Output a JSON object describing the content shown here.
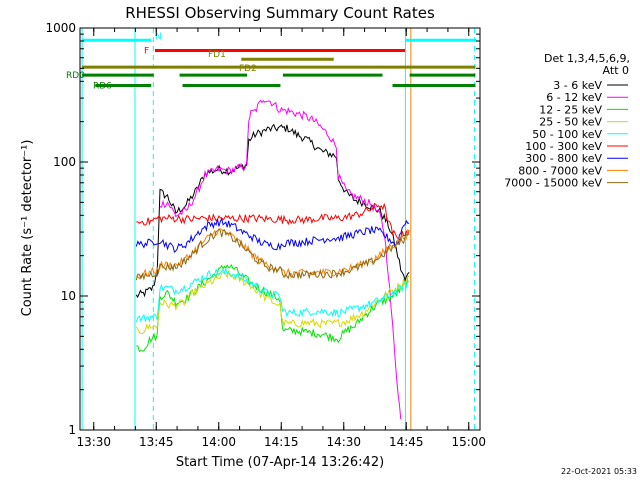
{
  "chart_data": {
    "type": "line",
    "title": "RHESSI Observing Summary Count Rates",
    "xlabel": "Start Time (07-Apr-14 13:26:42)",
    "ylabel": "Count Rate (s⁻¹ detector⁻¹)",
    "footer": "22-Oct-2021 05:33",
    "x_unit": "minutes after 13:26:42",
    "xlim": [
      0,
      96
    ],
    "ylim": [
      1,
      1000
    ],
    "y_scale": "log",
    "grid": false,
    "x_ticks": [
      {
        "label": "13:30",
        "value": 3.3
      },
      {
        "label": "13:45",
        "value": 18.3
      },
      {
        "label": "14:00",
        "value": 33.3
      },
      {
        "label": "14:15",
        "value": 48.3
      },
      {
        "label": "14:30",
        "value": 63.3
      },
      {
        "label": "14:45",
        "value": 78.3
      },
      {
        "label": "15:00",
        "value": 93.3
      }
    ],
    "y_ticks": [
      {
        "label": "1",
        "value": 1
      },
      {
        "label": "10",
        "value": 10
      },
      {
        "label": "100",
        "value": 100
      },
      {
        "label": "1000",
        "value": 1000
      }
    ],
    "legend": {
      "position": "right",
      "header": [
        "Det 1,3,4,5,6,9,",
        "Att 0"
      ],
      "entries": [
        {
          "label": "3 - 6 keV",
          "color": "#000000"
        },
        {
          "label": "6 - 12 keV",
          "color": "#ff00ff"
        },
        {
          "label": "12 - 25 keV",
          "color": "#00e600"
        },
        {
          "label": "25 - 50 keV",
          "color": "#d8d800"
        },
        {
          "label": "50 - 100 keV",
          "color": "#00ffff"
        },
        {
          "label": "100 - 300 keV",
          "color": "#ff0000"
        },
        {
          "label": "300 - 800 keV",
          "color": "#0000ff"
        },
        {
          "label": "800 - 7000 keV",
          "color": "#ff8000"
        },
        {
          "label": "7000 - 15000 keV",
          "color": "#8b6914"
        }
      ]
    },
    "series": [
      {
        "name": "3 - 6 keV",
        "color": "#000000",
        "x": [
          13.5,
          15.5,
          17.5,
          18.5,
          19.2,
          21,
          23,
          25.5,
          28,
          30,
          33,
          36,
          38,
          40,
          40.5,
          42,
          45,
          48,
          50,
          52,
          54,
          56,
          58,
          60,
          61.5,
          62,
          64,
          66,
          68,
          70,
          72,
          74,
          75.5,
          77,
          78,
          79
        ],
        "y": [
          10,
          10.5,
          11.5,
          15,
          60,
          55,
          42,
          48,
          62,
          82,
          88,
          86,
          90,
          95,
          145,
          160,
          175,
          180,
          178,
          160,
          150,
          135,
          120,
          115,
          110,
          75,
          58,
          52,
          50,
          46,
          43,
          34,
          25,
          16,
          13,
          15
        ]
      },
      {
        "name": "6 - 12 keV",
        "color": "#ff00ff",
        "x": [
          19.2,
          21,
          23,
          25.5,
          28,
          30,
          33,
          36,
          38,
          40,
          40.5,
          41,
          42,
          44,
          46,
          48,
          50,
          52,
          54,
          56,
          58,
          60,
          61.5,
          62,
          64,
          66,
          68,
          70,
          72,
          73,
          74,
          75,
          76,
          77
        ],
        "y": [
          48,
          50,
          40,
          43,
          58,
          80,
          88,
          86,
          90,
          95,
          210,
          230,
          240,
          300,
          280,
          245,
          240,
          230,
          220,
          205,
          180,
          155,
          130,
          78,
          60,
          55,
          52,
          48,
          40,
          30,
          15,
          6,
          2.5,
          1.2
        ]
      },
      {
        "name": "12 - 25 keV",
        "color": "#00e600",
        "x": [
          13.5,
          15,
          17,
          18.5,
          19.2,
          21,
          23,
          25,
          27,
          29,
          31,
          33,
          35,
          37,
          39,
          41,
          43,
          45,
          48,
          48.6,
          50,
          52,
          54,
          56,
          58,
          60,
          62,
          64,
          66,
          68,
          70,
          72,
          74,
          76,
          78,
          79
        ],
        "y": [
          4.2,
          4,
          4.8,
          5,
          10,
          10.5,
          9,
          9.3,
          10.5,
          12,
          13.5,
          15,
          17,
          16,
          14,
          12.5,
          11.5,
          10.5,
          9.5,
          5.5,
          5.5,
          5.5,
          5.4,
          5.3,
          5.2,
          5,
          4.8,
          5.5,
          6,
          7,
          8,
          9,
          9.5,
          10.5,
          12,
          14
        ]
      },
      {
        "name": "25 - 50 keV",
        "color": "#d8d800",
        "x": [
          13.5,
          15,
          17,
          18.5,
          19.2,
          21,
          23,
          25,
          27,
          29,
          31,
          33,
          35,
          37,
          39,
          41,
          43,
          45,
          48,
          48.6,
          50,
          52,
          54,
          56,
          58,
          60,
          62,
          64,
          66,
          68,
          70,
          72,
          74,
          76,
          78,
          79
        ],
        "y": [
          5.5,
          5.5,
          6,
          5.8,
          9,
          8.6,
          8.5,
          9,
          10.5,
          11.5,
          12.5,
          13.5,
          14.5,
          14,
          13,
          12,
          10.5,
          9.5,
          8.5,
          6.3,
          6.2,
          6.2,
          6.3,
          6.3,
          6.2,
          6.2,
          6.3,
          6.5,
          7,
          7.5,
          8.5,
          9.5,
          10.5,
          11.5,
          13,
          14
        ]
      },
      {
        "name": "50 - 100 keV",
        "color": "#00ffff",
        "x": [
          13.5,
          15,
          17,
          18.5,
          19.2,
          21,
          23,
          25,
          27,
          29,
          31,
          33,
          35,
          37,
          39,
          41,
          43,
          45,
          48,
          48.6,
          50,
          52,
          54,
          56,
          58,
          60,
          62,
          64,
          66,
          68,
          70,
          72,
          74,
          76,
          78,
          79
        ],
        "y": [
          6.8,
          6.8,
          7,
          7,
          11.5,
          11.5,
          11,
          11.5,
          12.5,
          13.5,
          14.5,
          15,
          15,
          14.5,
          13.5,
          12.5,
          11.5,
          10.5,
          10,
          7.8,
          7.5,
          7.5,
          7.6,
          7.7,
          7.7,
          7.6,
          7.5,
          7.7,
          8,
          8.4,
          8.8,
          9.3,
          10,
          11,
          12,
          13
        ]
      },
      {
        "name": "100 - 300 keV",
        "color": "#ff0000",
        "x": [
          13.5,
          15,
          17,
          18.5,
          19.2,
          21,
          23,
          25,
          27,
          29,
          31,
          33,
          35,
          37,
          39,
          41,
          43,
          45,
          48,
          48.6,
          50,
          52,
          54,
          56,
          58,
          60,
          62,
          64,
          66,
          68,
          70,
          72,
          73,
          74,
          75,
          76,
          77,
          78,
          79
        ],
        "y": [
          35,
          36,
          36,
          38,
          38,
          38,
          38,
          37.5,
          37.5,
          38,
          38,
          38,
          38,
          38,
          38,
          38,
          38,
          37.5,
          37.5,
          37,
          37,
          37,
          37,
          37.5,
          38,
          38,
          38,
          39,
          40,
          42,
          45,
          48,
          46,
          36,
          30,
          27,
          28,
          30,
          31
        ]
      },
      {
        "name": "300 - 800 keV",
        "color": "#0000ff",
        "x": [
          13.5,
          15,
          17,
          18.5,
          19.2,
          21,
          23,
          25,
          27,
          29,
          31,
          33,
          35,
          37,
          39,
          41,
          43,
          45,
          48,
          48.6,
          50,
          52,
          54,
          56,
          58,
          60,
          62,
          64,
          66,
          68,
          70,
          72,
          74,
          76,
          77,
          78,
          79
        ],
        "y": [
          24,
          24.5,
          25,
          26,
          26,
          24,
          22.5,
          24,
          27,
          31,
          34,
          35.5,
          35,
          33,
          30,
          28,
          25.5,
          24,
          23.5,
          25,
          25,
          25,
          25.5,
          26,
          26.5,
          27,
          27,
          28,
          29,
          30,
          31,
          30,
          27,
          24,
          30,
          36,
          35
        ]
      },
      {
        "name": "800 - 7000 keV",
        "color": "#ff8000",
        "x": [
          13.5,
          15,
          17,
          18.5,
          19.2,
          21,
          23,
          25,
          27,
          29,
          31,
          33,
          35,
          37,
          39,
          41,
          43,
          45,
          48,
          48.6,
          50,
          52,
          54,
          56,
          58,
          60,
          62,
          64,
          66,
          68,
          70,
          72,
          74,
          76,
          78,
          79
        ],
        "y": [
          14,
          14.5,
          15,
          15.5,
          17,
          17,
          17,
          18.5,
          21,
          24.5,
          27.5,
          31,
          30,
          27,
          24,
          21,
          18.5,
          17,
          16,
          15,
          14.8,
          14.8,
          14.8,
          14.9,
          15,
          15,
          15.3,
          15.8,
          16.5,
          17.5,
          18.5,
          20,
          23,
          25,
          28,
          30
        ]
      },
      {
        "name": "7000 - 15000 keV",
        "color": "#8b6914",
        "x": [
          13.5,
          15,
          17,
          18.5,
          19.2,
          21,
          23,
          25,
          27,
          29,
          31,
          33,
          35,
          37,
          39,
          41,
          43,
          45,
          48,
          48.6,
          50,
          52,
          54,
          56,
          58,
          60,
          62,
          64,
          66,
          68,
          70,
          72,
          74,
          76,
          78,
          79
        ],
        "y": [
          13.5,
          14,
          14.5,
          15,
          16.5,
          16.5,
          16.5,
          18,
          20.5,
          24,
          27,
          30,
          29,
          26.5,
          23.5,
          20.5,
          18,
          16.5,
          15.5,
          14.6,
          14.4,
          14.4,
          14.4,
          14.5,
          14.6,
          14.6,
          14.9,
          15.4,
          16,
          17,
          18,
          19.5,
          22,
          24,
          27,
          29
        ]
      }
    ],
    "verticals": [
      {
        "x": 0.5,
        "color": "#00ffff",
        "style": "solid"
      },
      {
        "x": 13.2,
        "color": "#00ffff",
        "style": "solid"
      },
      {
        "x": 17.6,
        "color": "#00ffff",
        "style": "dashed"
      },
      {
        "x": 78.1,
        "color": "#00ffff",
        "style": "solid"
      },
      {
        "x": 94.7,
        "color": "#00ffff",
        "style": "dashed"
      },
      {
        "x": 79.4,
        "color": "#ff8000",
        "style": "solid"
      }
    ],
    "flags": [
      {
        "label": "N",
        "color": "#00ffff",
        "value": 811,
        "segments": [
          [
            0.5,
            17.1
          ],
          [
            78.1,
            95.2
          ]
        ]
      },
      {
        "label": "F",
        "color": "#ff0000",
        "value": 680,
        "segments": [
          [
            18.0,
            78.0
          ]
        ]
      },
      {
        "label": "FD1",
        "color": "#808000",
        "value": 585,
        "segments": [
          [
            38.7,
            60.9
          ]
        ]
      },
      {
        "label": "FD2",
        "color": "#808000",
        "value": 510,
        "segments": [
          [
            0.5,
            94.9
          ]
        ]
      },
      {
        "label": "RD0",
        "color": "#008000",
        "value": 445,
        "segments": [
          [
            0.5,
            17.7
          ],
          [
            23.9,
            40.1
          ],
          [
            48.7,
            72.6
          ],
          [
            79.1,
            94.9
          ]
        ]
      },
      {
        "label": "RD6",
        "color": "#008000",
        "value": 372,
        "segments": [
          [
            3.7,
            17.1
          ],
          [
            24.6,
            48.1
          ],
          [
            75.0,
            94.9
          ]
        ]
      }
    ]
  }
}
